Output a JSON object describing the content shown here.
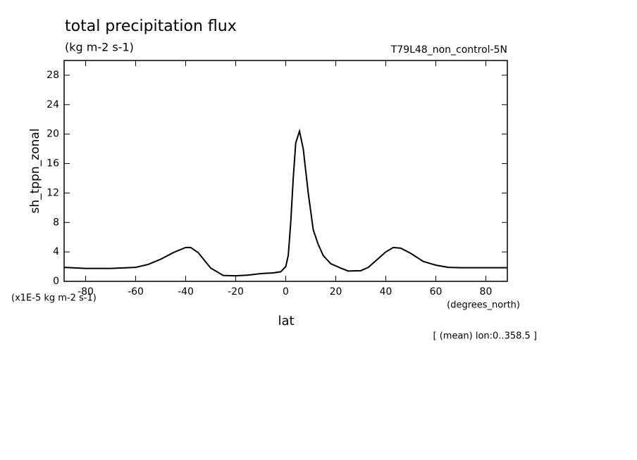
{
  "chart_data": {
    "type": "line",
    "title": "total precipitation flux",
    "subtitle": "(kg m-2 s-1)",
    "dataset_label": "T79L48_non_control-5N",
    "y_label": "sh_tppn_zonal",
    "y_units": "(x1E-5 kg m-2 s-1)",
    "x_units": "(degrees_north)",
    "x_label": "lat",
    "annotation": "[ (mean) lon:0..358.5 ]",
    "color": "#000000",
    "x": [
      -88.6,
      -80,
      -70,
      -60,
      -55,
      -50,
      -45,
      -40,
      -38,
      -35,
      -30,
      -25,
      -20,
      -15,
      -10,
      -5,
      -2,
      0,
      1,
      2,
      3,
      4,
      5.5,
      7,
      9,
      11,
      13,
      15,
      18,
      22,
      25,
      30,
      33,
      36,
      40,
      43,
      46,
      50,
      55,
      60,
      65,
      70,
      80,
      88.6
    ],
    "values": [
      1.9,
      1.75,
      1.75,
      1.9,
      2.3,
      3.0,
      3.9,
      4.6,
      4.6,
      3.9,
      1.8,
      0.8,
      0.75,
      0.85,
      1.05,
      1.15,
      1.3,
      2.0,
      3.5,
      8,
      14,
      18.8,
      20.4,
      18,
      12,
      7,
      5,
      3.5,
      2.4,
      1.8,
      1.4,
      1.45,
      1.9,
      2.8,
      4.0,
      4.6,
      4.5,
      3.8,
      2.7,
      2.2,
      1.9,
      1.85,
      1.85,
      1.85
    ],
    "xlim": [
      -88.6,
      88.6
    ],
    "ylim": [
      0,
      30
    ],
    "xticks": [
      -80,
      -60,
      -40,
      -20,
      0,
      20,
      40,
      60,
      80
    ],
    "yticks": [
      0,
      4,
      8,
      12,
      16,
      20,
      24,
      28
    ]
  }
}
